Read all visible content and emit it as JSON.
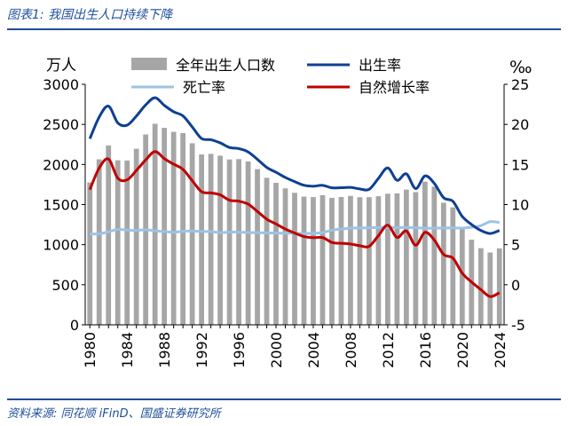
{
  "header": {
    "title": "图表1:  我国出生人口持续下降"
  },
  "footer": {
    "source": "资料来源:  同花顺 iFinD、国盛证券研究所"
  },
  "chart_data": {
    "type": "bar+line",
    "x": [
      1980,
      1981,
      1982,
      1983,
      1984,
      1985,
      1986,
      1987,
      1988,
      1989,
      1990,
      1991,
      1992,
      1993,
      1994,
      1995,
      1996,
      1997,
      1998,
      1999,
      2000,
      2001,
      2002,
      2003,
      2004,
      2005,
      2006,
      2007,
      2008,
      2009,
      2010,
      2011,
      2012,
      2013,
      2014,
      2015,
      2016,
      2017,
      2018,
      2019,
      2020,
      2021,
      2022,
      2023,
      2024
    ],
    "x_tick_labels": [
      "1980",
      "1984",
      "1988",
      "1992",
      "1996",
      "2000",
      "2004",
      "2008",
      "2012",
      "2016",
      "2020",
      "2024"
    ],
    "left_axis": {
      "unit": "万人",
      "ylim": [
        0,
        3000
      ],
      "ticks": [
        "0",
        "500",
        "1000",
        "1500",
        "2000",
        "2500",
        "3000"
      ]
    },
    "right_axis": {
      "unit": "‰",
      "ylim": [
        -5,
        25
      ],
      "ticks": [
        "-5",
        "0",
        "5",
        "10",
        "15",
        "20",
        "25"
      ]
    },
    "series": [
      {
        "name": "全年出生人口数",
        "kind": "bar",
        "axis": "left",
        "color": "#a6a6a6",
        "values": [
          1776,
          2064,
          2237,
          2052,
          2050,
          2196,
          2374,
          2508,
          2457,
          2407,
          2391,
          2265,
          2125,
          2132,
          2110,
          2063,
          2067,
          2038,
          1942,
          1834,
          1771,
          1702,
          1647,
          1599,
          1593,
          1617,
          1584,
          1594,
          1608,
          1591,
          1592,
          1604,
          1635,
          1640,
          1687,
          1655,
          1786,
          1723,
          1523,
          1465,
          1202,
          1062,
          956,
          902,
          954
        ]
      },
      {
        "name": "出生率",
        "kind": "line",
        "axis": "right",
        "color": "#0e3f93",
        "values": [
          18.21,
          20.91,
          22.28,
          20.19,
          19.9,
          21.04,
          22.43,
          23.33,
          22.37,
          21.58,
          21.06,
          19.68,
          18.24,
          18.09,
          17.7,
          17.12,
          16.98,
          16.57,
          15.64,
          14.64,
          14.03,
          13.38,
          12.86,
          12.41,
          12.29,
          12.4,
          12.09,
          12.1,
          12.14,
          11.95,
          11.9,
          13.27,
          14.57,
          13.03,
          13.83,
          11.99,
          13.57,
          12.64,
          10.86,
          10.41,
          8.52,
          7.52,
          6.77,
          6.39,
          6.77
        ]
      },
      {
        "name": "死亡率",
        "kind": "line",
        "axis": "right",
        "color": "#9dc3e6",
        "values": [
          6.34,
          6.36,
          6.6,
          6.9,
          6.82,
          6.78,
          6.86,
          6.72,
          6.64,
          6.54,
          6.67,
          6.7,
          6.64,
          6.64,
          6.49,
          6.57,
          6.56,
          6.51,
          6.5,
          6.46,
          6.45,
          6.43,
          6.41,
          6.4,
          6.42,
          6.51,
          6.81,
          6.93,
          7.06,
          7.08,
          7.11,
          7.14,
          7.13,
          7.13,
          7.12,
          7.11,
          7.04,
          7.06,
          7.08,
          7.09,
          7.07,
          7.18,
          7.37,
          7.87,
          7.76
        ]
      },
      {
        "name": "自然增长率",
        "kind": "line",
        "axis": "right",
        "color": "#c00000",
        "values": [
          11.87,
          14.55,
          15.68,
          13.29,
          13.08,
          14.26,
          15.57,
          16.61,
          15.73,
          15.04,
          14.39,
          12.98,
          11.6,
          11.45,
          11.21,
          10.55,
          10.42,
          10.06,
          9.14,
          8.18,
          7.58,
          6.95,
          6.45,
          6.01,
          5.87,
          5.89,
          5.28,
          5.17,
          5.08,
          4.87,
          4.79,
          6.13,
          7.43,
          5.9,
          6.71,
          4.93,
          6.53,
          5.58,
          3.78,
          3.32,
          1.45,
          0.34,
          -0.6,
          -1.48,
          -0.99
        ]
      }
    ],
    "legend": [
      "全年出生人口数",
      "出生率",
      "死亡率",
      "自然增长率"
    ],
    "legend_placement": "top"
  }
}
